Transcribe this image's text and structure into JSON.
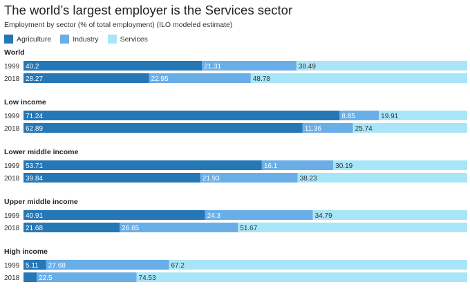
{
  "chart_data": {
    "type": "bar",
    "orientation": "horizontal",
    "stacked": true,
    "title": "The world’s largest employer is the Services sector",
    "subtitle": "Employment by sector (% of total employment) (ILO modeled estimate)",
    "series_names": [
      "Agriculture",
      "Industry",
      "Services"
    ],
    "colors": [
      "#2577b5",
      "#6aaee8",
      "#a9e5f8"
    ],
    "label_colors": [
      "#ffffff",
      "#ffffff",
      "#333333"
    ],
    "xlim": [
      0,
      100
    ],
    "groups": [
      {
        "name": "World",
        "rows": [
          {
            "year": "1999",
            "values": [
              40.2,
              21.31,
              38.49
            ],
            "labels": [
              "40.2",
              "21.31",
              "38.49"
            ]
          },
          {
            "year": "2018",
            "values": [
              28.27,
              22.95,
              48.78
            ],
            "labels": [
              "28.27",
              "22.95",
              "48.78"
            ]
          }
        ]
      },
      {
        "name": "Low income",
        "rows": [
          {
            "year": "1999",
            "values": [
              71.24,
              8.85,
              19.91
            ],
            "labels": [
              "71.24",
              "8.85",
              "19.91"
            ]
          },
          {
            "year": "2018",
            "values": [
              62.89,
              11.36,
              25.74
            ],
            "labels": [
              "62.89",
              "11.36",
              "25.74"
            ]
          }
        ]
      },
      {
        "name": "Lower middle income",
        "rows": [
          {
            "year": "1999",
            "values": [
              53.71,
              16.1,
              30.19
            ],
            "labels": [
              "53.71",
              "16.1",
              "30.19"
            ]
          },
          {
            "year": "2018",
            "values": [
              39.84,
              21.93,
              38.23
            ],
            "labels": [
              "39.84",
              "21.93",
              "38.23"
            ]
          }
        ]
      },
      {
        "name": "Upper middle income",
        "rows": [
          {
            "year": "1999",
            "values": [
              40.91,
              24.3,
              34.79
            ],
            "labels": [
              "40.91",
              "24.3",
              "34.79"
            ]
          },
          {
            "year": "2018",
            "values": [
              21.68,
              26.65,
              51.67
            ],
            "labels": [
              "21.68",
              "26.65",
              "51.67"
            ]
          }
        ]
      },
      {
        "name": "High income",
        "rows": [
          {
            "year": "1999",
            "values": [
              5.11,
              27.68,
              67.2
            ],
            "labels": [
              "5.11",
              "27.68",
              "67.2"
            ]
          },
          {
            "year": "2018",
            "values": [
              2.97,
              22.5,
              74.53
            ],
            "labels": [
              "",
              "22.5",
              "74.53"
            ]
          }
        ]
      }
    ]
  }
}
